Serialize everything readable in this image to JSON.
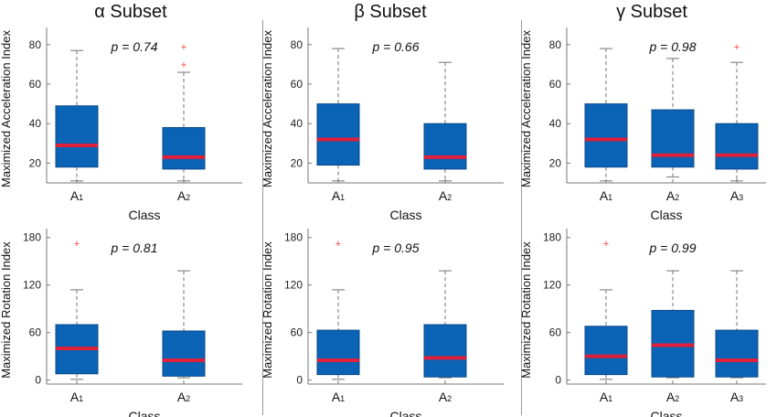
{
  "figure": {
    "columns": [
      {
        "title": "α Subset"
      },
      {
        "title": "β Subset"
      },
      {
        "title": "γ Subset"
      }
    ]
  },
  "colors": {
    "box_fill": "#0b63b5",
    "box_edge": "#08488a",
    "median": "#e0203a",
    "whisker": "#8a8a8a",
    "outlier": "#ff3b3b",
    "axis": "#777777"
  },
  "chart_data": [
    {
      "id": "alpha-accel",
      "type": "box",
      "column": 0,
      "row": 0,
      "title": "α Subset",
      "ylabel": "Maximized Acceleration Index",
      "xlabel": "Class",
      "ylim": [
        10,
        85
      ],
      "yticks": [
        20,
        40,
        60,
        80
      ],
      "ytick_labels": [
        "20",
        "40",
        "60",
        "80"
      ],
      "annotation": "p = 0.74",
      "categories": [
        "A1",
        "A2"
      ],
      "boxes": [
        {
          "min": 11,
          "q1": 18,
          "median": 29,
          "q3": 49,
          "max": 77,
          "outliers": []
        },
        {
          "min": 11,
          "q1": 17,
          "median": 23,
          "q3": 38,
          "max": 66,
          "outliers": [
            70,
            79
          ]
        }
      ]
    },
    {
      "id": "alpha-rot",
      "type": "box",
      "column": 0,
      "row": 1,
      "ylabel": "Maximized Rotation Index",
      "xlabel": "Class",
      "ylim": [
        -5,
        182
      ],
      "yticks": [
        0,
        60,
        120,
        180
      ],
      "ytick_labels": [
        "0",
        "60",
        "120",
        "180"
      ],
      "annotation": "p = 0.81",
      "categories": [
        "A1",
        "A2"
      ],
      "boxes": [
        {
          "min": 1,
          "q1": 8,
          "median": 40,
          "q3": 70,
          "max": 114,
          "outliers": [
            173
          ]
        },
        {
          "min": 3,
          "q1": 5,
          "median": 25,
          "q3": 62,
          "max": 138,
          "outliers": []
        }
      ]
    },
    {
      "id": "beta-accel",
      "type": "box",
      "column": 1,
      "row": 0,
      "title": "β Subset",
      "ylabel": "Maximized Acceleration Index",
      "xlabel": "Class",
      "ylim": [
        10,
        85
      ],
      "yticks": [
        20,
        40,
        60,
        80
      ],
      "ytick_labels": [
        "20",
        "40",
        "60",
        "80"
      ],
      "annotation": "p = 0.66",
      "categories": [
        "A1",
        "A2"
      ],
      "boxes": [
        {
          "min": 11,
          "q1": 19,
          "median": 32,
          "q3": 50,
          "max": 78,
          "outliers": []
        },
        {
          "min": 11,
          "q1": 17,
          "median": 23,
          "q3": 40,
          "max": 71,
          "outliers": []
        }
      ]
    },
    {
      "id": "beta-rot",
      "type": "box",
      "column": 1,
      "row": 1,
      "ylabel": "Maximized Rotation Index",
      "xlabel": "Class",
      "ylim": [
        -5,
        182
      ],
      "yticks": [
        0,
        60,
        120,
        180
      ],
      "ytick_labels": [
        "0",
        "60",
        "120",
        "180"
      ],
      "annotation": "p = 0.95",
      "categories": [
        "A1",
        "A2"
      ],
      "boxes": [
        {
          "min": 1,
          "q1": 7,
          "median": 25,
          "q3": 63,
          "max": 114,
          "outliers": [
            173
          ]
        },
        {
          "min": 3,
          "q1": 4,
          "median": 28,
          "q3": 70,
          "max": 138,
          "outliers": []
        }
      ]
    },
    {
      "id": "gamma-accel",
      "type": "box",
      "column": 2,
      "row": 0,
      "title": "γ Subset",
      "ylabel": "Maximized Acceleration Index",
      "xlabel": "Class",
      "ylim": [
        10,
        85
      ],
      "yticks": [
        20,
        40,
        60,
        80
      ],
      "ytick_labels": [
        "20",
        "40",
        "60",
        "80"
      ],
      "annotation": "p = 0.98",
      "categories": [
        "A1",
        "A2",
        "A3"
      ],
      "boxes": [
        {
          "min": 11,
          "q1": 18,
          "median": 32,
          "q3": 50,
          "max": 78,
          "outliers": []
        },
        {
          "min": 13,
          "q1": 18,
          "median": 24,
          "q3": 47,
          "max": 73,
          "outliers": []
        },
        {
          "min": 11,
          "q1": 17,
          "median": 24,
          "q3": 40,
          "max": 71,
          "outliers": [
            79
          ]
        }
      ]
    },
    {
      "id": "gamma-rot",
      "type": "box",
      "column": 2,
      "row": 1,
      "ylabel": "Maximized Rotation Index",
      "xlabel": "Class",
      "ylim": [
        -5,
        182
      ],
      "yticks": [
        0,
        60,
        120,
        180
      ],
      "ytick_labels": [
        "0",
        "60",
        "120",
        "180"
      ],
      "annotation": "p = 0.99",
      "categories": [
        "A1",
        "A2",
        "A3"
      ],
      "boxes": [
        {
          "min": 1,
          "q1": 7,
          "median": 30,
          "q3": 68,
          "max": 114,
          "outliers": [
            173
          ]
        },
        {
          "min": 3,
          "q1": 4,
          "median": 44,
          "q3": 88,
          "max": 138,
          "outliers": []
        },
        {
          "min": 3,
          "q1": 4,
          "median": 25,
          "q3": 63,
          "max": 138,
          "outliers": []
        }
      ]
    }
  ]
}
